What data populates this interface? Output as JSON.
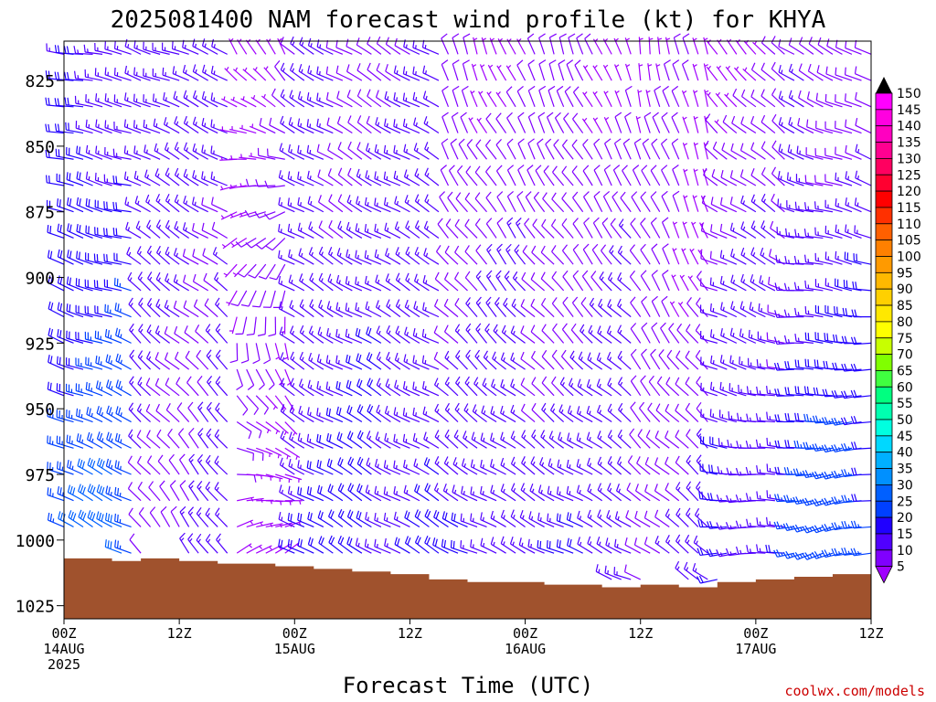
{
  "chart_data": {
    "type": "wind-barb-time-height",
    "title": "2025081400 NAM forecast wind profile (kt) for KHYA",
    "xlabel": "Forecast Time (UTC)",
    "credit": "coolwx.com/models",
    "yaxis": {
      "unit": "hPa",
      "range": [
        1030,
        810
      ],
      "ticks": [
        "825",
        "850",
        "875",
        "900",
        "925",
        "950",
        "975",
        "1000",
        "1025"
      ]
    },
    "xaxis": {
      "range_hours": [
        0,
        84
      ],
      "step_hours": 1,
      "ticks": [
        {
          "hour": 0,
          "line1": "00Z",
          "line2": "14AUG",
          "line3": "2025"
        },
        {
          "hour": 12,
          "line1": "12Z",
          "line2": "",
          "line3": ""
        },
        {
          "hour": 24,
          "line1": "00Z",
          "line2": "15AUG",
          "line3": ""
        },
        {
          "hour": 36,
          "line1": "12Z",
          "line2": "",
          "line3": ""
        },
        {
          "hour": 48,
          "line1": "00Z",
          "line2": "16AUG",
          "line3": ""
        },
        {
          "hour": 60,
          "line1": "12Z",
          "line2": "",
          "line3": ""
        },
        {
          "hour": 72,
          "line1": "00Z",
          "line2": "17AUG",
          "line3": ""
        },
        {
          "hour": 84,
          "line1": "12Z",
          "line2": "",
          "line3": ""
        }
      ]
    },
    "pressure_levels": [
      815,
      825,
      835,
      845,
      855,
      865,
      875,
      885,
      895,
      905,
      915,
      925,
      935,
      945,
      955,
      965,
      975,
      985,
      995,
      1005,
      1015
    ],
    "surface_pressure": [
      {
        "hour": 0,
        "p": 1007
      },
      {
        "hour": 5,
        "p": 1008
      },
      {
        "hour": 8,
        "p": 1007
      },
      {
        "hour": 12,
        "p": 1008
      },
      {
        "hour": 16,
        "p": 1009
      },
      {
        "hour": 22,
        "p": 1010
      },
      {
        "hour": 26,
        "p": 1011
      },
      {
        "hour": 30,
        "p": 1012
      },
      {
        "hour": 34,
        "p": 1013
      },
      {
        "hour": 38,
        "p": 1015
      },
      {
        "hour": 42,
        "p": 1016
      },
      {
        "hour": 50,
        "p": 1017
      },
      {
        "hour": 56,
        "p": 1018
      },
      {
        "hour": 60,
        "p": 1017
      },
      {
        "hour": 64,
        "p": 1018
      },
      {
        "hour": 68,
        "p": 1016
      },
      {
        "hour": 72,
        "p": 1015
      },
      {
        "hour": 76,
        "p": 1014
      },
      {
        "hour": 80,
        "p": 1013
      },
      {
        "hour": 84,
        "p": 1012
      }
    ],
    "wind_regimes": [
      {
        "from_hour": 0,
        "to_hour": 8,
        "dir_deg_low": 300,
        "dir_deg_high": 280,
        "speed_kt_low": 32,
        "speed_kt_high": 18
      },
      {
        "from_hour": 8,
        "to_hour": 18,
        "dir_deg_low": 330,
        "dir_deg_high": 290,
        "speed_kt_low": 14,
        "speed_kt_high": 18
      },
      {
        "from_hour": 18,
        "to_hour": 24,
        "dir_deg_low": 20,
        "dir_deg_high": 340,
        "speed_kt_low": 8,
        "speed_kt_high": 10
      },
      {
        "from_hour": 24,
        "to_hour": 40,
        "dir_deg_low": 300,
        "dir_deg_high": 300,
        "speed_kt_low": 22,
        "speed_kt_high": 14
      },
      {
        "from_hour": 40,
        "to_hour": 60,
        "dir_deg_low": 290,
        "dir_deg_high": 340,
        "speed_kt_low": 20,
        "speed_kt_high": 10
      },
      {
        "from_hour": 60,
        "to_hour": 68,
        "dir_deg_low": 300,
        "dir_deg_high": 350,
        "speed_kt_low": 16,
        "speed_kt_high": 8
      },
      {
        "from_hour": 68,
        "to_hour": 76,
        "dir_deg_low": 260,
        "dir_deg_high": 320,
        "speed_kt_low": 22,
        "speed_kt_high": 10
      },
      {
        "from_hour": 76,
        "to_hour": 84,
        "dir_deg_low": 250,
        "dir_deg_high": 300,
        "speed_kt_low": 30,
        "speed_kt_high": 12
      }
    ],
    "colorbar": {
      "levels": [
        "150",
        "145",
        "140",
        "135",
        "130",
        "125",
        "120",
        "115",
        "110",
        "105",
        "100",
        "95",
        "90",
        "85",
        "80",
        "75",
        "70",
        "65",
        "60",
        "55",
        "50",
        "45",
        "40",
        "35",
        "30",
        "25",
        "20",
        "15",
        "10",
        "5"
      ],
      "colors": [
        "#ff00ff",
        "#ff00e0",
        "#ff00c0",
        "#ff0090",
        "#ff0060",
        "#ff0030",
        "#ff0000",
        "#ff3000",
        "#ff6000",
        "#ff8000",
        "#ff9a00",
        "#ffb800",
        "#ffd000",
        "#ffe800",
        "#ffff00",
        "#c8ff00",
        "#80ff00",
        "#40ff40",
        "#00ff80",
        "#00ffb0",
        "#00ffe0",
        "#00d8ff",
        "#00b0ff",
        "#0090ff",
        "#0060ff",
        "#0040ff",
        "#2000ff",
        "#5000ff",
        "#8000ff",
        "#a000ff"
      ]
    },
    "colors": {
      "surface": "#a0522d",
      "frame": "#000000"
    }
  }
}
